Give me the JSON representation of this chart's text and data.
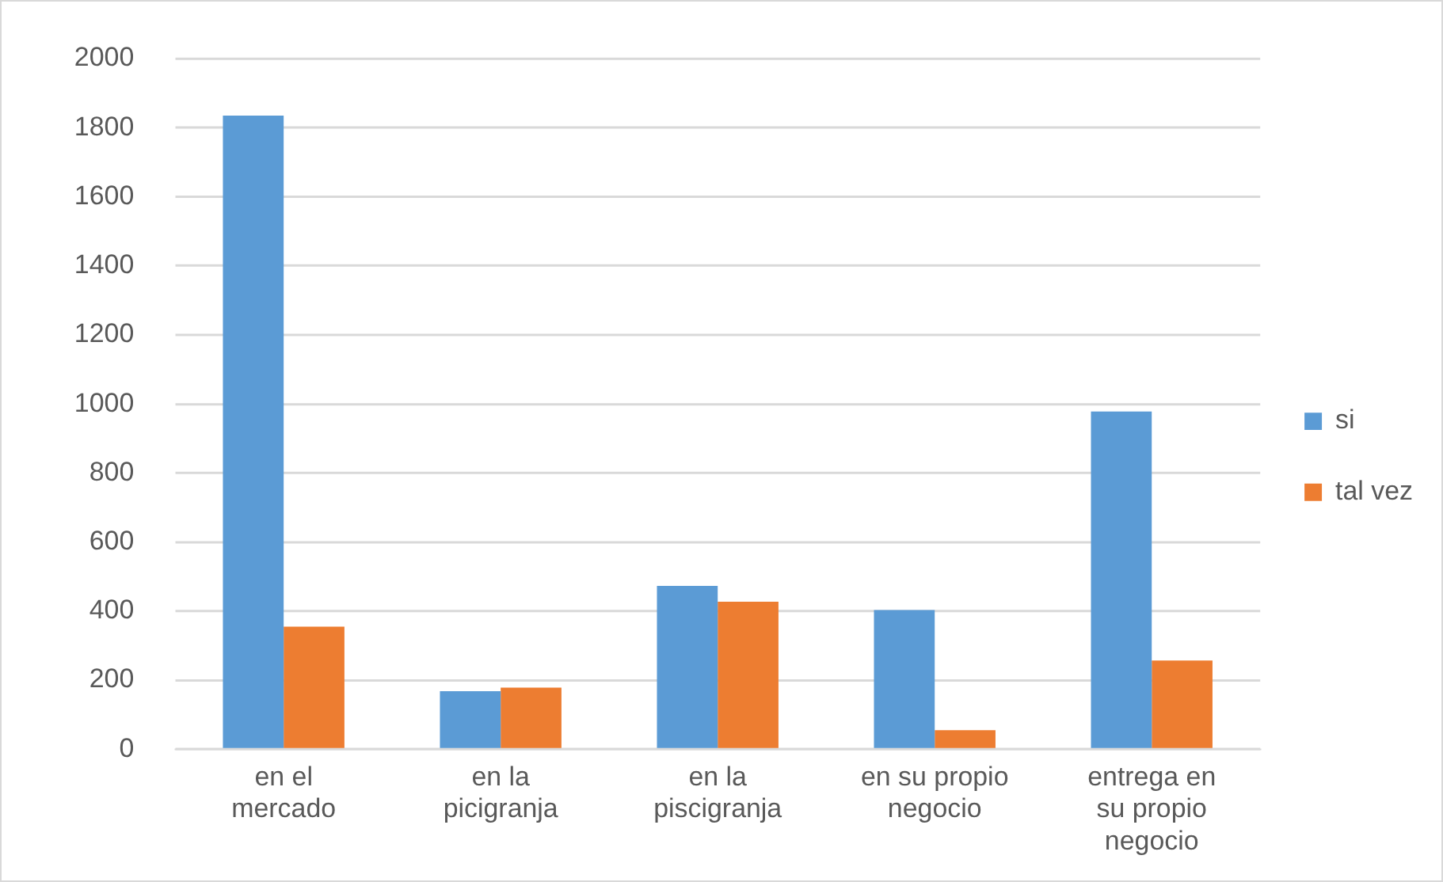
{
  "chart_data": {
    "type": "bar",
    "categories": [
      "en el mercado",
      "en la picigranja",
      "en la piscigranja",
      "en su propio negocio",
      "entrega en su propio negocio"
    ],
    "series": [
      {
        "name": "si",
        "color": "#5b9bd5",
        "values": [
          1835,
          168,
          473,
          403,
          978
        ]
      },
      {
        "name": "tal vez",
        "color": "#ed7d31",
        "values": [
          355,
          178,
          427,
          55,
          257
        ]
      }
    ],
    "ylim": [
      0,
      2000
    ],
    "yticks": [
      0,
      200,
      400,
      600,
      800,
      1000,
      1200,
      1400,
      1600,
      1800,
      2000
    ],
    "grid": "y",
    "legend": "right"
  }
}
